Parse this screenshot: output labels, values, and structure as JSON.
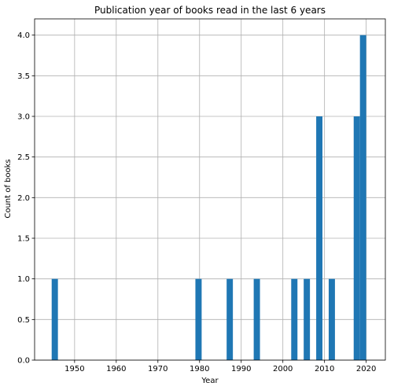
{
  "chart_data": {
    "type": "bar",
    "title": "Publication year of books read in the last 6 years",
    "xlabel": "Year",
    "ylabel": "Count of books",
    "xlim": [
      1940.4,
      2024.6
    ],
    "ylim": [
      0,
      4.2
    ],
    "x_ticks": [
      1950,
      1960,
      1970,
      1980,
      1990,
      2000,
      2010,
      2020
    ],
    "x_tick_labels": [
      "1950",
      "1960",
      "1970",
      "1980",
      "1990",
      "2000",
      "2010",
      "2020"
    ],
    "y_ticks": [
      0.0,
      0.5,
      1.0,
      1.5,
      2.0,
      2.5,
      3.0,
      3.5,
      4.0
    ],
    "y_tick_labels": [
      "0.0",
      "0.5",
      "1.0",
      "1.5",
      "2.0",
      "2.5",
      "3.0",
      "3.5",
      "4.0"
    ],
    "grid": true,
    "bar_color": "#1f77b4",
    "bins": [
      {
        "x0": 1944.5,
        "x1": 1946.0,
        "value": 1
      },
      {
        "x0": 1979.0,
        "x1": 1980.5,
        "value": 1
      },
      {
        "x0": 1986.5,
        "x1": 1988.0,
        "value": 1
      },
      {
        "x0": 1993.0,
        "x1": 1994.5,
        "value": 1
      },
      {
        "x0": 2002.0,
        "x1": 2003.5,
        "value": 1
      },
      {
        "x0": 2005.0,
        "x1": 2006.5,
        "value": 1
      },
      {
        "x0": 2008.0,
        "x1": 2009.5,
        "value": 3
      },
      {
        "x0": 2011.0,
        "x1": 2012.5,
        "value": 1
      },
      {
        "x0": 2017.0,
        "x1": 2018.5,
        "value": 3
      },
      {
        "x0": 2018.5,
        "x1": 2020.0,
        "value": 4
      }
    ]
  }
}
